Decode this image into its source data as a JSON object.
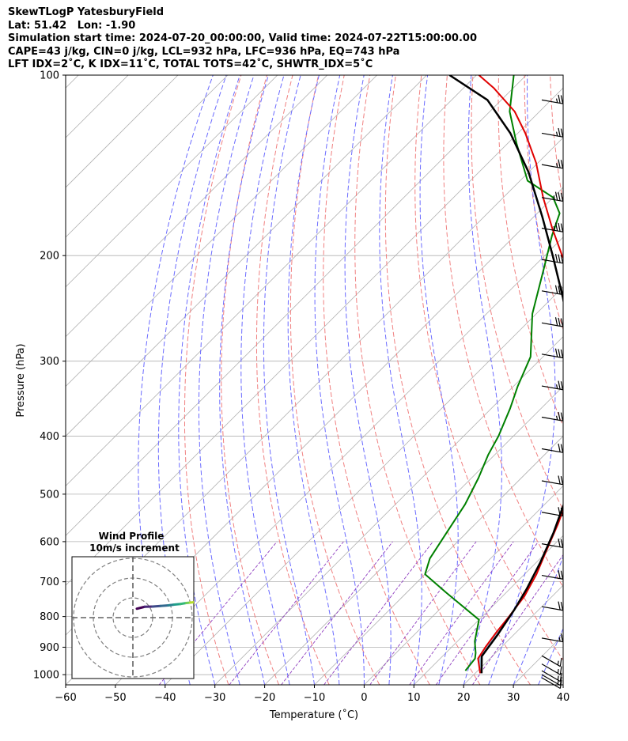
{
  "header": {
    "line1": "SkewTLogP YatesburyField",
    "line2": "Lat: 51.42   Lon: -1.90",
    "line3": "Simulation start time: 2024-07-20_00:00:00, Valid time: 2024-07-22T15:00:00.00",
    "line4": "CAPE=43 j/kg, CIN=0 j/kg, LCL=932 hPa, LFC=936 hPa, EQ=743 hPa",
    "line5": "LFT IDX=2˚C, K IDX=11˚C, TOTAL TOTS=42˚C, SHWTR_IDX=5˚C"
  },
  "colors": {
    "temperature": "#e00000",
    "dewpoint": "#008000",
    "parcel": "#000000",
    "cape_fill": "#a3c5e0",
    "isotherm": "#b0b0b0",
    "dry_adiabat": "#f08080",
    "moist_adiabat": "#6b6bff",
    "mixing_ratio": "#9040c0"
  },
  "chart_data": [
    {
      "type": "line",
      "title": "",
      "xlabel": "Temperature (˚C)",
      "ylabel": "Pressure (hPa)",
      "xlim": [
        -60,
        40
      ],
      "ylim": [
        1040,
        100
      ],
      "yscale": "log",
      "skew": "45deg",
      "grid": true,
      "x_ticks": [
        "−60",
        "−50",
        "−40",
        "−30",
        "−20",
        "−10",
        "0",
        "10",
        "20",
        "30",
        "40"
      ],
      "y_ticks": [
        "100",
        "200",
        "300",
        "400",
        "500",
        "600",
        "700",
        "800",
        "900",
        "1000"
      ],
      "series": [
        {
          "key": "temperature",
          "points": [
            [
              21,
              995
            ],
            [
              17.6,
              940
            ],
            [
              16.8,
              900
            ],
            [
              16,
              850
            ],
            [
              15.4,
              800
            ],
            [
              14.4,
              740
            ],
            [
              12.4,
              680
            ],
            [
              9.6,
              620
            ],
            [
              6.6,
              560
            ],
            [
              2.8,
              500
            ],
            [
              -2.6,
              440
            ],
            [
              -9.4,
              380
            ],
            [
              -15.6,
              330
            ],
            [
              -21.5,
              290
            ],
            [
              -27,
              260
            ],
            [
              -31.8,
              240
            ],
            [
              -38.8,
              220
            ],
            [
              -46.5,
              200
            ],
            [
              -54,
              180
            ],
            [
              -62,
              160
            ],
            [
              -70.4,
              140
            ],
            [
              -78.5,
              125
            ],
            [
              -85,
              115
            ],
            [
              -94,
              105
            ],
            [
              -99.5,
              100
            ]
          ]
        },
        {
          "key": "dewpoint",
          "points": [
            [
              17.5,
              985
            ],
            [
              17,
              940
            ],
            [
              16,
              920
            ],
            [
              13.5,
              880
            ],
            [
              10,
              810
            ],
            [
              -2,
              730
            ],
            [
              -10,
              680
            ],
            [
              -12.2,
              640
            ],
            [
              -14,
              580
            ],
            [
              -16,
              520
            ],
            [
              -18.6,
              470
            ],
            [
              -21.3,
              430
            ],
            [
              -23,
              400
            ],
            [
              -26.2,
              360
            ],
            [
              -29.2,
              330
            ],
            [
              -32.5,
              295
            ],
            [
              -40.8,
              250
            ],
            [
              -47.6,
              210
            ],
            [
              -52.6,
              185
            ],
            [
              -55.5,
              170
            ],
            [
              -60,
              160
            ],
            [
              -68.5,
              150
            ],
            [
              -78.2,
              130
            ],
            [
              -86,
              115
            ],
            [
              -92.5,
              100
            ]
          ]
        },
        {
          "key": "parcel",
          "points": [
            [
              21.3,
              995
            ],
            [
              17.9,
              932
            ],
            [
              16.8,
              860
            ],
            [
              15.1,
              780
            ],
            [
              13.4,
              720
            ],
            [
              10.8,
              650
            ],
            [
              7.5,
              580
            ],
            [
              3.2,
              510
            ],
            [
              -2,
              450
            ],
            [
              -8.6,
              390
            ],
            [
              -17.4,
              330
            ],
            [
              -28.2,
              275
            ],
            [
              -37.9,
              235
            ],
            [
              -48.4,
              200
            ],
            [
              -58.4,
              172
            ],
            [
              -70.1,
              145
            ],
            [
              -81.5,
              125
            ],
            [
              -92.8,
              110
            ],
            [
              -105.4,
              100
            ]
          ]
        }
      ]
    },
    {
      "type": "scatter",
      "title": "Wind Profile",
      "subtitle": "10m/s increment",
      "rings_ms": [
        10,
        20,
        30
      ],
      "hodograph_uv_ms": [
        [
          2,
          4.5
        ],
        [
          6,
          5.5
        ],
        [
          10,
          5.6
        ],
        [
          14,
          5.9
        ],
        [
          18,
          6.2
        ],
        [
          21,
          6.6
        ],
        [
          24,
          6.9
        ],
        [
          27,
          7.4
        ],
        [
          29,
          7.6
        ],
        [
          31,
          7.8
        ]
      ]
    }
  ],
  "wind_barbs": [
    {
      "p": 110,
      "speed_kt": 25,
      "dir_deg": 260
    },
    {
      "p": 125,
      "speed_kt": 25,
      "dir_deg": 260
    },
    {
      "p": 141,
      "speed_kt": 25,
      "dir_deg": 260
    },
    {
      "p": 160,
      "speed_kt": 35,
      "dir_deg": 260
    },
    {
      "p": 180,
      "speed_kt": 35,
      "dir_deg": 260
    },
    {
      "p": 203,
      "speed_kt": 35,
      "dir_deg": 260
    },
    {
      "p": 229,
      "speed_kt": 30,
      "dir_deg": 260
    },
    {
      "p": 259,
      "speed_kt": 30,
      "dir_deg": 260
    },
    {
      "p": 292,
      "speed_kt": 30,
      "dir_deg": 260
    },
    {
      "p": 330,
      "speed_kt": 25,
      "dir_deg": 260
    },
    {
      "p": 372,
      "speed_kt": 25,
      "dir_deg": 260
    },
    {
      "p": 420,
      "speed_kt": 20,
      "dir_deg": 260
    },
    {
      "p": 475,
      "speed_kt": 20,
      "dir_deg": 260
    },
    {
      "p": 536,
      "speed_kt": 20,
      "dir_deg": 260
    },
    {
      "p": 605,
      "speed_kt": 20,
      "dir_deg": 260
    },
    {
      "p": 683,
      "speed_kt": 20,
      "dir_deg": 260
    },
    {
      "p": 770,
      "speed_kt": 20,
      "dir_deg": 260
    },
    {
      "p": 869,
      "speed_kt": 15,
      "dir_deg": 260
    },
    {
      "p": 930,
      "speed_kt": 15,
      "dir_deg": 240
    },
    {
      "p": 960,
      "speed_kt": 15,
      "dir_deg": 240
    },
    {
      "p": 985,
      "speed_kt": 15,
      "dir_deg": 240
    },
    {
      "p": 1000,
      "speed_kt": 15,
      "dir_deg": 240
    },
    {
      "p": 1012,
      "speed_kt": 10,
      "dir_deg": 240
    }
  ]
}
